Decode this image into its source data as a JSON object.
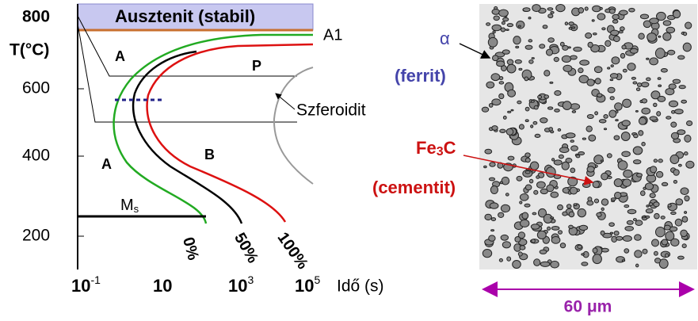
{
  "diagram": {
    "y_axis": {
      "label": "T(°C)",
      "ticks": [
        "800",
        "600",
        "400",
        "200"
      ]
    },
    "x_axis": {
      "label": "Idő (s)",
      "ticks": [
        {
          "base": "10",
          "exp": "-1"
        },
        {
          "base": "10"
        },
        {
          "base": "10",
          "exp": "3"
        },
        {
          "base": "10",
          "exp": "5"
        }
      ]
    },
    "regions": {
      "austenite_stable": "Ausztenit (stabil)",
      "a1": "A1",
      "a_upper": "A",
      "pearlite": "P",
      "spheroidite": "Szferoidit",
      "a_lower": "A",
      "bainite": "B"
    },
    "ms": {
      "base": "M",
      "sub": "s"
    },
    "curves": [
      "0%",
      "50%",
      "100%"
    ]
  },
  "micrograph": {
    "ferrite": {
      "symbol": "α",
      "name": "(ferrit)"
    },
    "cementite": {
      "formula": {
        "a": "Fe",
        "sub": "3",
        "b": "C"
      },
      "name": "(cementit)"
    },
    "scale": "60 μm"
  }
}
